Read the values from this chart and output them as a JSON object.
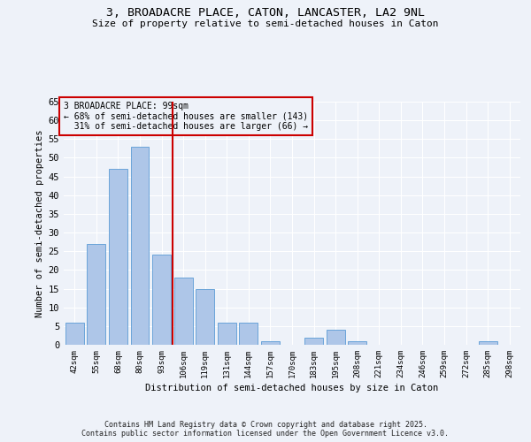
{
  "title1": "3, BROADACRE PLACE, CATON, LANCASTER, LA2 9NL",
  "title2": "Size of property relative to semi-detached houses in Caton",
  "xlabel": "Distribution of semi-detached houses by size in Caton",
  "ylabel": "Number of semi-detached properties",
  "categories": [
    "42sqm",
    "55sqm",
    "68sqm",
    "80sqm",
    "93sqm",
    "106sqm",
    "119sqm",
    "131sqm",
    "144sqm",
    "157sqm",
    "170sqm",
    "183sqm",
    "195sqm",
    "208sqm",
    "221sqm",
    "234sqm",
    "246sqm",
    "259sqm",
    "272sqm",
    "285sqm",
    "298sqm"
  ],
  "values": [
    6,
    27,
    47,
    53,
    24,
    18,
    15,
    6,
    6,
    1,
    0,
    2,
    4,
    1,
    0,
    0,
    0,
    0,
    0,
    1,
    0
  ],
  "bar_color": "#aec6e8",
  "bar_edge_color": "#5b9bd5",
  "property_label": "3 BROADACRE PLACE: 99sqm",
  "pct_smaller": 68,
  "count_smaller": 143,
  "pct_larger": 31,
  "count_larger": 66,
  "vline_position": 4.5,
  "ylim": [
    0,
    65
  ],
  "yticks": [
    0,
    5,
    10,
    15,
    20,
    25,
    30,
    35,
    40,
    45,
    50,
    55,
    60,
    65
  ],
  "annotation_box_color": "#cc0000",
  "vline_color": "#cc0000",
  "background_color": "#eef2f9",
  "grid_color": "#ffffff",
  "footer": "Contains HM Land Registry data © Crown copyright and database right 2025.\nContains public sector information licensed under the Open Government Licence v3.0."
}
